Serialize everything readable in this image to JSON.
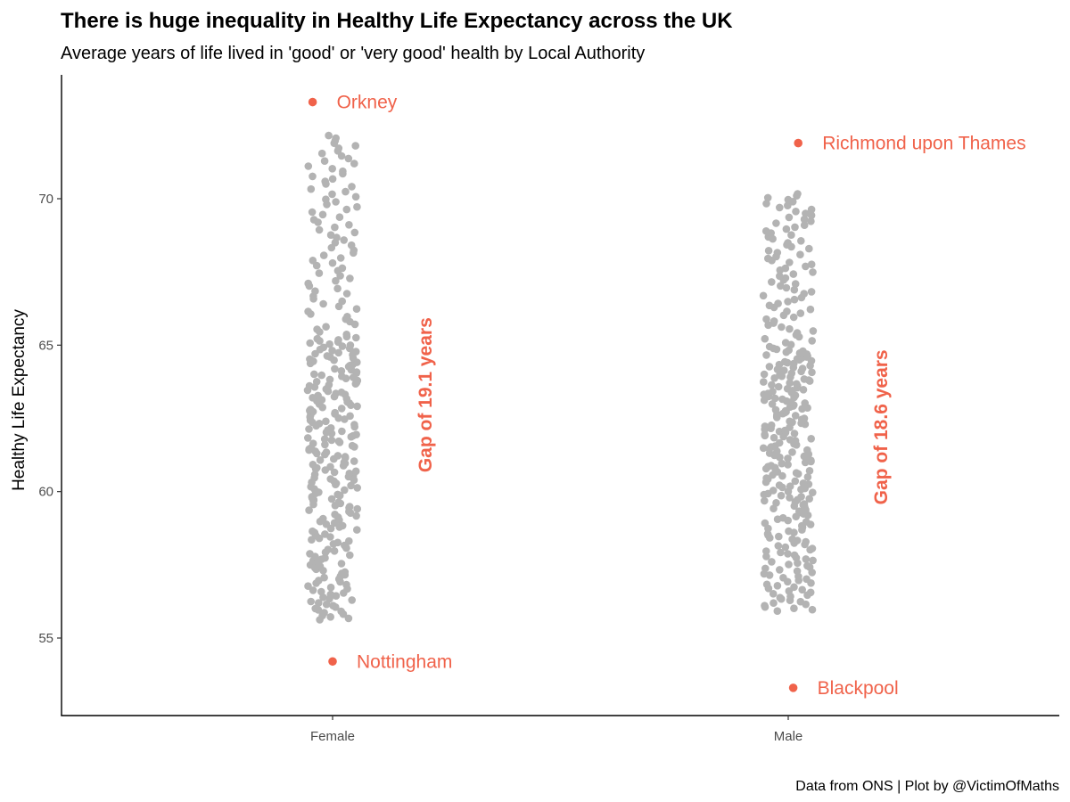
{
  "colors": {
    "points": "#b3b3b3",
    "highlight": "#f0624a",
    "axis": "#000000"
  },
  "chart_data": {
    "type": "scatter",
    "title": "There is huge inequality in Healthy Life Expectancy across the UK",
    "subtitle": "Average years of life lived in 'good' or 'very good' health by Local Authority",
    "xlabel": "",
    "ylabel": "Healthy Life Expectancy",
    "caption": "Data from ONS | Plot by @VictimOfMaths",
    "categories": [
      "Female",
      "Male"
    ],
    "ylim": [
      52.5,
      74
    ],
    "yticks": [
      55,
      60,
      65,
      70
    ],
    "grid": false,
    "groups": [
      {
        "category": "Female",
        "n": 317,
        "min": 55.6,
        "max": 72.2,
        "quartiles": [
          59.4,
          62.4,
          65.3
        ]
      },
      {
        "category": "Male",
        "n": 317,
        "min": 55.9,
        "max": 70.2,
        "quartiles": [
          59.5,
          62.3,
          64.9
        ]
      }
    ],
    "highlights": [
      {
        "category": "Female",
        "label": "Orkney",
        "y": 73.3,
        "jitter": -0.04
      },
      {
        "category": "Female",
        "label": "Nottingham",
        "y": 54.2,
        "jitter": 0.0
      },
      {
        "category": "Male",
        "label": "Richmond upon Thames",
        "y": 71.9,
        "jitter": 0.02
      },
      {
        "category": "Male",
        "label": "Blackpool",
        "y": 53.3,
        "jitter": 0.01
      }
    ],
    "gap_annotations": [
      {
        "category": "Female",
        "label": "Gap of 19.1 years",
        "y_center": 63.3
      },
      {
        "category": "Male",
        "label": "Gap of 18.6 years",
        "y_center": 62.2
      }
    ]
  }
}
